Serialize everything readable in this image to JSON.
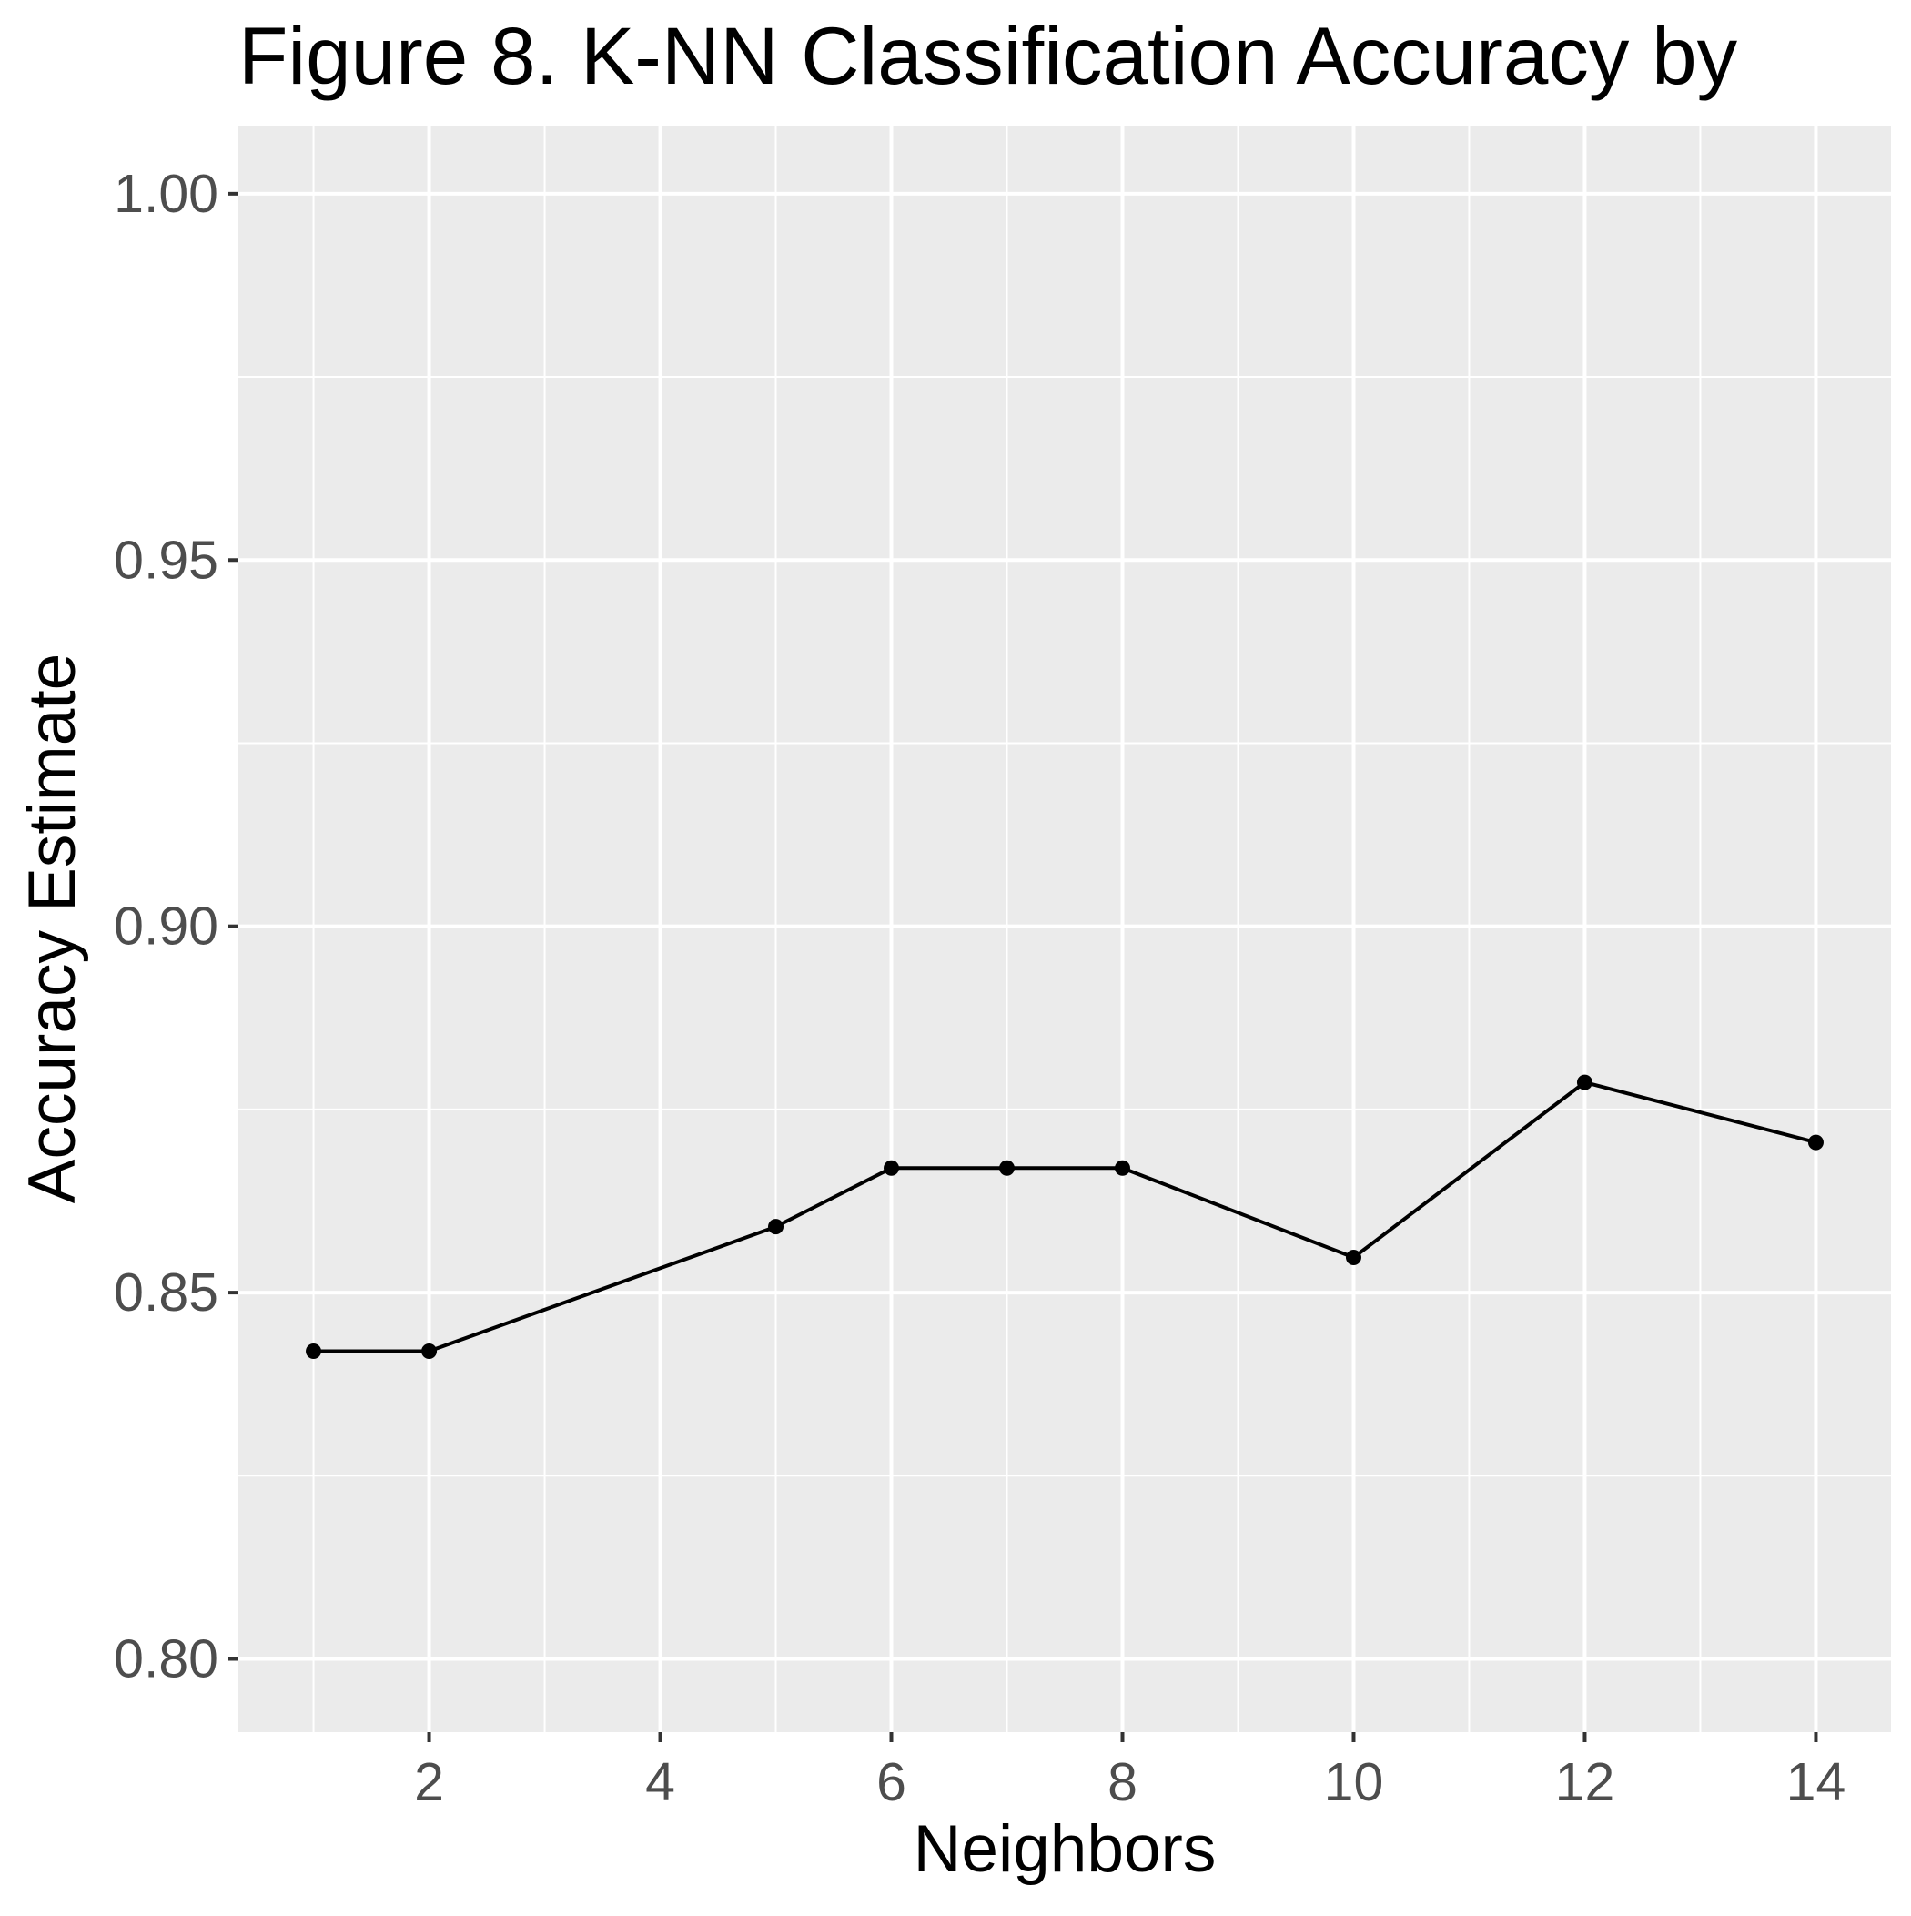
{
  "chart_data": {
    "type": "line",
    "title": "Figure 8. K-NN Classification Accuracy by",
    "xlabel": "Neighbors",
    "ylabel": "Accuracy Estimate",
    "xlim": [
      0.35,
      14.65
    ],
    "ylim": [
      0.79,
      1.0093
    ],
    "x_ticks": [
      2,
      4,
      6,
      8,
      10,
      12,
      14
    ],
    "x_minor_ticks": [
      1,
      3,
      5,
      7,
      9,
      11,
      13
    ],
    "y_ticks": [
      0.8,
      0.85,
      0.9,
      0.95,
      1.0
    ],
    "y_tick_labels": [
      "0.80",
      "0.85",
      "0.90",
      "0.95",
      "1.00"
    ],
    "y_minor_ticks": [
      0.825,
      0.875,
      0.925,
      0.975
    ],
    "grid": true,
    "panel_background": "#ebebeb",
    "grid_color": "#ffffff",
    "line_color": "#000000",
    "series": [
      {
        "x": [
          1,
          2,
          5,
          6,
          7,
          8,
          10,
          12,
          14
        ],
        "y": [
          0.842,
          0.842,
          0.859,
          0.867,
          0.867,
          0.867,
          0.8548,
          0.8787,
          0.8705
        ]
      }
    ]
  }
}
